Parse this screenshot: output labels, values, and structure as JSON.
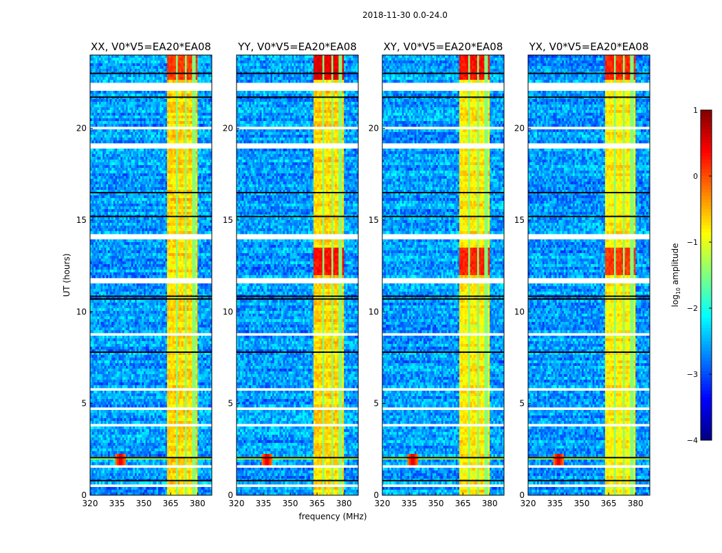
{
  "chart_data": {
    "type": "heatmap",
    "suptitle": "2018-11-30 0.0-24.0",
    "xlabel": "frequency (MHz)",
    "ylabel": "UT (hours)",
    "xlim": [
      320,
      388
    ],
    "ylim": [
      0,
      24
    ],
    "xticks": [
      "320",
      "335",
      "350",
      "365",
      "380"
    ],
    "xtick_values": [
      320,
      335,
      350,
      365,
      380
    ],
    "yticks": [
      "0",
      "5",
      "10",
      "15",
      "20"
    ],
    "ytick_values": [
      0,
      5,
      10,
      15,
      20
    ],
    "panels": [
      {
        "title": "XX, V0*V5=EA20*EA08",
        "band_level": -0.7,
        "strong_hours": [
          [
            22.6,
            24,
            0.1
          ]
        ]
      },
      {
        "title": "YY, V0*V5=EA20*EA08",
        "band_level": -0.7,
        "strong_hours": [
          [
            22.6,
            24,
            0.5
          ],
          [
            12,
            13.5,
            0.3
          ]
        ]
      },
      {
        "title": "XY, V0*V5=EA20*EA08",
        "band_level": -0.8,
        "strong_hours": [
          [
            22.6,
            24,
            0.3
          ],
          [
            12,
            13.5,
            0.2
          ]
        ]
      },
      {
        "title": "YX, V0*V5=EA20*EA08",
        "band_level": -0.8,
        "strong_hours": [
          [
            22.6,
            24,
            0.2
          ],
          [
            12,
            13.5,
            0.1
          ]
        ]
      }
    ],
    "background_level": -2.6,
    "band_mhz": [
      363,
      380
    ],
    "band_gaps_mhz": [
      368.5,
      373.5,
      378
    ],
    "rfi_spike": {
      "freq_mhz": 337,
      "hour": 2.0
    },
    "flagged_hours": [
      [
        22.1,
        22.5
      ],
      [
        19.9,
        20.1
      ],
      [
        18.9,
        19.2
      ],
      [
        14.0,
        14.2
      ],
      [
        11.6,
        11.8
      ],
      [
        8.7,
        8.9
      ],
      [
        5.7,
        5.8
      ],
      [
        4.6,
        4.75
      ],
      [
        3.7,
        3.9
      ],
      [
        1.5,
        1.6
      ],
      [
        0.5,
        0.65
      ]
    ],
    "dark_lines_hours": [
      23.0,
      21.7,
      16.5,
      15.2,
      10.7,
      10.85,
      7.8,
      2.05,
      0.8
    ],
    "colorbar": {
      "label": "log10 amplitude",
      "label_main": "log",
      "label_sub": "10",
      "label_rest": " amplitude",
      "range": [
        -4,
        1
      ],
      "ticks": [
        "1",
        "0",
        "−1",
        "−2",
        "−3",
        "−4"
      ],
      "tick_values": [
        1,
        0,
        -1,
        -2,
        -3,
        -4
      ]
    }
  }
}
